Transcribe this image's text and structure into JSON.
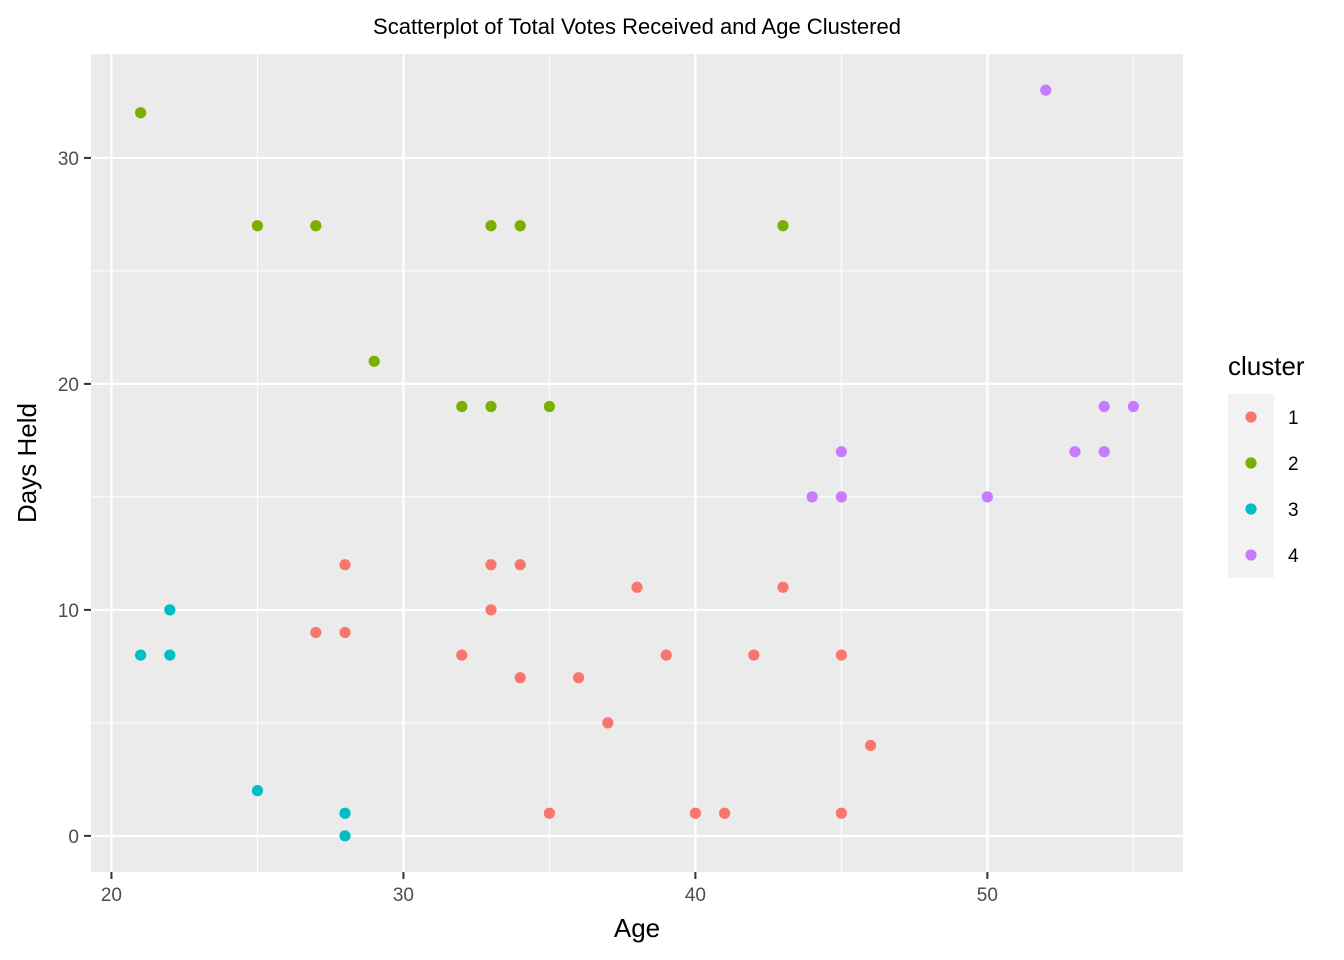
{
  "chart_data": {
    "type": "scatter",
    "title": "Scatterplot of Total Votes Received and Age Clustered",
    "xlabel": "Age",
    "ylabel": "Days Held",
    "xlim": [
      19.3,
      56.7
    ],
    "ylim": [
      -1.6,
      34.6
    ],
    "x_ticks": [
      20,
      30,
      40,
      50
    ],
    "y_ticks": [
      0,
      10,
      20,
      30
    ],
    "grid": true,
    "legend": {
      "title": "cluster",
      "position": "right"
    },
    "series": [
      {
        "name": "1",
        "color": "#F8766D",
        "points": [
          [
            27,
            9
          ],
          [
            28,
            12
          ],
          [
            28,
            9
          ],
          [
            32,
            8
          ],
          [
            33,
            12
          ],
          [
            33,
            10
          ],
          [
            34,
            12
          ],
          [
            34,
            7
          ],
          [
            35,
            1
          ],
          [
            36,
            7
          ],
          [
            37,
            5
          ],
          [
            38,
            11
          ],
          [
            39,
            8
          ],
          [
            40,
            1
          ],
          [
            41,
            1
          ],
          [
            42,
            8
          ],
          [
            43,
            11
          ],
          [
            45,
            8
          ],
          [
            45,
            1
          ],
          [
            46,
            4
          ]
        ]
      },
      {
        "name": "2",
        "color": "#7CAE00",
        "points": [
          [
            21,
            32
          ],
          [
            25,
            27
          ],
          [
            27,
            27
          ],
          [
            29,
            21
          ],
          [
            32,
            19
          ],
          [
            33,
            27
          ],
          [
            33,
            19
          ],
          [
            34,
            27
          ],
          [
            35,
            19
          ],
          [
            43,
            27
          ]
        ]
      },
      {
        "name": "3",
        "color": "#00BFC4",
        "points": [
          [
            21,
            8
          ],
          [
            22,
            10
          ],
          [
            22,
            8
          ],
          [
            25,
            2
          ],
          [
            28,
            1
          ],
          [
            28,
            0
          ]
        ]
      },
      {
        "name": "4",
        "color": "#C77CFF",
        "points": [
          [
            44,
            15
          ],
          [
            45,
            17
          ],
          [
            45,
            15
          ],
          [
            50,
            15
          ],
          [
            52,
            33
          ],
          [
            53,
            17
          ],
          [
            54,
            19
          ],
          [
            54,
            17
          ],
          [
            55,
            19
          ]
        ]
      }
    ]
  }
}
